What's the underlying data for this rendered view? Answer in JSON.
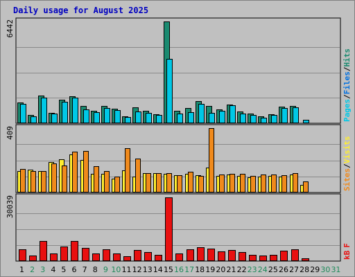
{
  "chart_data": {
    "type": "bar",
    "title": "Daily usage for August 2025",
    "days": [
      "1",
      "2",
      "3",
      "4",
      "5",
      "6",
      "7",
      "8",
      "9",
      "10",
      "11",
      "12",
      "13",
      "14",
      "15",
      "16",
      "17",
      "18",
      "19",
      "20",
      "21",
      "22",
      "23",
      "24",
      "25",
      "26",
      "27",
      "28",
      "29",
      "30",
      "31"
    ],
    "weekend_days": [
      "2",
      "3",
      "9",
      "10",
      "16",
      "17",
      "23",
      "24",
      "30",
      "31"
    ],
    "panels": [
      {
        "id": "hits",
        "max_label": "6442",
        "ymax": 6442,
        "right_label": [
          "Pages",
          "/",
          "Files",
          "/",
          "Hits"
        ],
        "right_label_colors": [
          "#00c8e6",
          "#000000",
          "#0070e0",
          "#000000",
          "#1a8a70"
        ],
        "series": [
          {
            "name": "Hits",
            "color": "#1a8a70",
            "values": [
              1330,
              520,
              1770,
              660,
              1480,
              1730,
              1110,
              780,
              1090,
              920,
              460,
              1000,
              800,
              570,
              6442,
              770,
              950,
              1390,
              1080,
              860,
              1200,
              760,
              620,
              420,
              570,
              1030,
              1100,
              0,
              0,
              0,
              0
            ]
          },
          {
            "name": "Files",
            "color": "#0070e0",
            "values": [
              1210,
              440,
              1610,
              600,
              1350,
              1640,
              860,
              690,
              970,
              820,
              400,
              740,
              640,
              540,
              4060,
              620,
              700,
              1230,
              640,
              790,
              1150,
              600,
              510,
              350,
              510,
              950,
              1000,
              200,
              0,
              0,
              0
            ]
          },
          {
            "name": "Pages",
            "color": "#00c8e6",
            "values": [
              1210,
              440,
              1610,
              600,
              1350,
              1640,
              860,
              690,
              970,
              820,
              400,
              740,
              640,
              540,
              4060,
              620,
              700,
              1230,
              640,
              790,
              1150,
              600,
              510,
              350,
              510,
              950,
              1000,
              200,
              0,
              0,
              0
            ]
          }
        ]
      },
      {
        "id": "visits",
        "max_label": "409",
        "ymax": 409,
        "right_label": [
          "Sites",
          "/",
          "Visits"
        ],
        "right_label_colors": [
          "#f08a1c",
          "#000000",
          "#ffee30"
        ],
        "series": [
          {
            "name": "Visits",
            "color": "#ffee30",
            "values": [
              135,
              143,
              135,
              195,
              210,
              243,
              205,
              120,
              120,
              90,
              140,
              100,
              121,
              125,
              120,
              110,
              120,
              110,
              160,
              105,
              115,
              105,
              95,
              100,
              105,
              100,
              115,
              50,
              0,
              0,
              0
            ]
          },
          {
            "name": "Sites",
            "color": "#f08a1c",
            "values": [
              150,
              135,
              135,
              185,
              170,
              260,
              264,
              168,
              135,
              100,
              282,
              214,
              125,
              125,
              125,
              110,
              130,
              105,
              409,
              115,
              120,
              120,
              105,
              115,
              115,
              110,
              125,
              70,
              0,
              0,
              0
            ]
          }
        ]
      },
      {
        "id": "kbytes",
        "max_label": "30039",
        "ymax": 30039,
        "right_label": [
          "kB",
          "F"
        ],
        "right_label_colors": [
          "#e81010",
          "#e81010"
        ],
        "series": [
          {
            "name": "kB F",
            "color": "#e81010",
            "values": [
              5640,
              2660,
              9500,
              3580,
              6930,
              9600,
              6250,
              3580,
              5640,
              3750,
              2400,
              5120,
              4270,
              2850,
              30039,
              3580,
              5640,
              6670,
              5970,
              4440,
              5120,
              4100,
              2850,
              2560,
              3070,
              4950,
              5460,
              1310,
              0,
              0,
              0
            ]
          }
        ]
      }
    ]
  }
}
